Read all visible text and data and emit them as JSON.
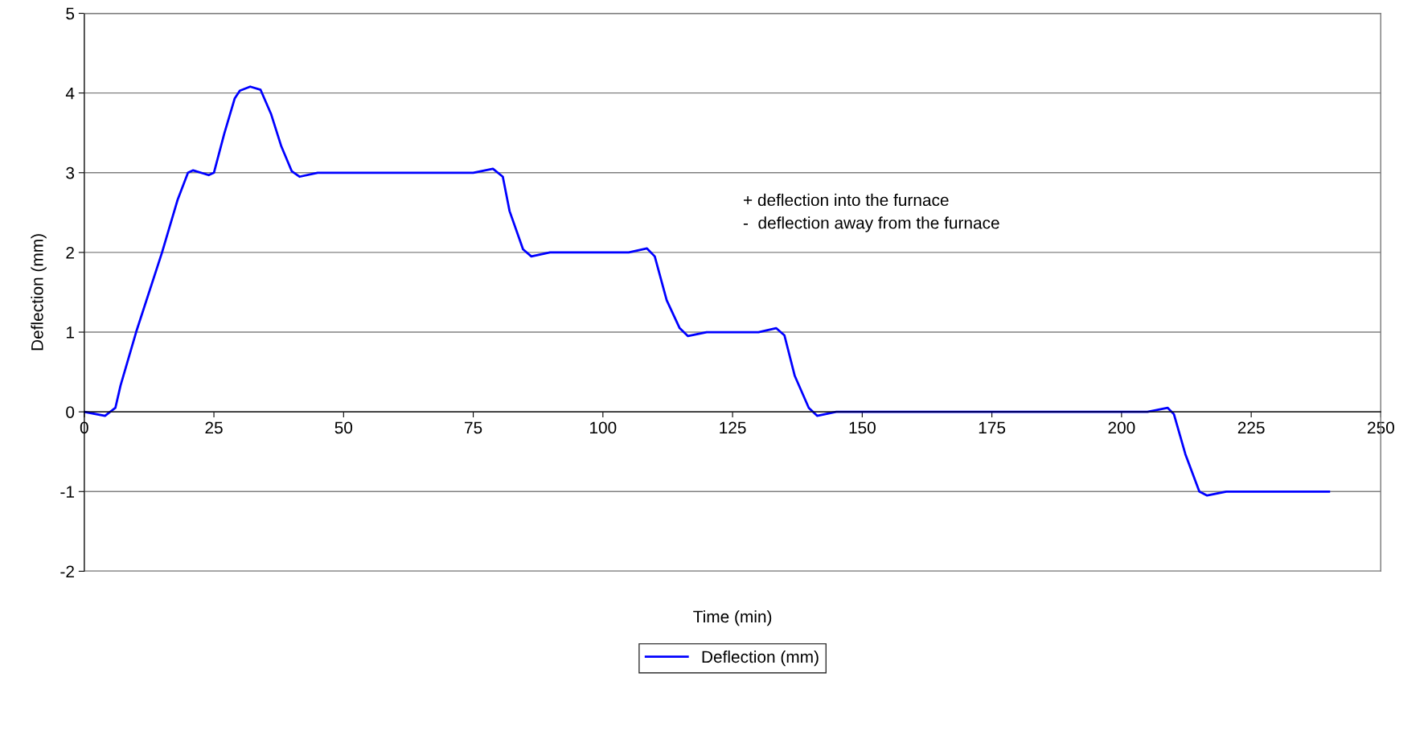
{
  "chart_data": {
    "type": "line",
    "xlabel": "Time (min)",
    "ylabel": "Deflection (mm)",
    "x": [
      0,
      4,
      6,
      7,
      10,
      15,
      18,
      20,
      21,
      24,
      25,
      27,
      29,
      30,
      32,
      34,
      36,
      38,
      40,
      41.5,
      45,
      75,
      78.8,
      80.7,
      82,
      84.6,
      86.2,
      89.8,
      105,
      108.5,
      110,
      112.3,
      114.8,
      116.4,
      120,
      130,
      133.4,
      135,
      137,
      139.7,
      141.3,
      145,
      205,
      208.9,
      210.1,
      212.3,
      215,
      216.5,
      220.2,
      240
    ],
    "series": [
      {
        "name": "Deflection (mm)",
        "color": "#0000ff",
        "values": [
          0,
          -0.05,
          0.05,
          0.33,
          1.0,
          2.0,
          2.66,
          3.0,
          3.03,
          2.97,
          3.0,
          3.49,
          3.93,
          4.03,
          4.08,
          4.04,
          3.74,
          3.33,
          3.02,
          2.95,
          3.0,
          3.0,
          3.05,
          2.95,
          2.52,
          2.04,
          1.95,
          2.0,
          2.0,
          2.05,
          1.95,
          1.4,
          1.05,
          0.95,
          1.0,
          1.0,
          1.05,
          0.96,
          0.45,
          0.05,
          -0.05,
          0,
          0,
          0.05,
          -0.03,
          -0.53,
          -1.0,
          -1.05,
          -1.0,
          -1.0
        ]
      }
    ],
    "xlim": [
      0,
      250
    ],
    "xticks": [
      0,
      25,
      50,
      75,
      100,
      125,
      150,
      175,
      200,
      225,
      250
    ],
    "ylim": [
      -2,
      5
    ],
    "yticks": [
      -2,
      -1,
      0,
      1,
      2,
      3,
      4,
      5
    ],
    "grid": "y",
    "legend": "bottom",
    "marker": "none",
    "line_style": "solid",
    "annotations": [
      "+ deflection into the furnace",
      "-  deflection away from the furnace"
    ]
  }
}
